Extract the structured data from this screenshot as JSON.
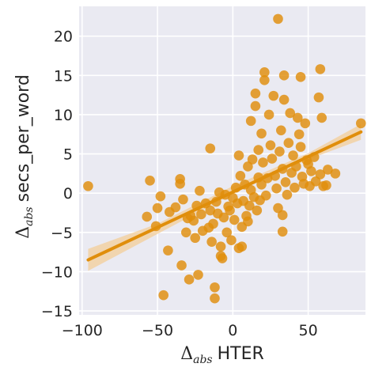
{
  "chart_data": {
    "type": "scatter",
    "title": "",
    "xlabel": {
      "symbol": "Δ",
      "subscript": "abs",
      "text": "HTER"
    },
    "ylabel": {
      "symbol": "Δ",
      "subscript": "abs",
      "text": "secs_per_word"
    },
    "xlim": [
      -102,
      88
    ],
    "ylim": [
      -15.5,
      23.8
    ],
    "xticks": [
      -100,
      -50,
      0,
      50
    ],
    "yticks": [
      -15,
      -10,
      -5,
      0,
      5,
      10,
      15,
      20
    ],
    "grid": true,
    "background": "#EAEAF2",
    "point_color": "#E08E0B",
    "line_color": "#E08E0B",
    "band_color": "#F3CC93",
    "regression": {
      "x0": -96,
      "y0": -8.5,
      "x1": 85,
      "y1": 7.8
    },
    "confidence_band": {
      "x": [
        -96,
        -50,
        0,
        50,
        85
      ],
      "lower": [
        -9.9,
        -5.2,
        -0.1,
        4.3,
        6.8
      ],
      "upper": [
        -7.1,
        -3.9,
        0.9,
        5.1,
        8.8
      ]
    },
    "points": [
      [
        -96,
        0.9
      ],
      [
        -55,
        1.6
      ],
      [
        -57,
        -3.0
      ],
      [
        -50,
        -1.9
      ],
      [
        -51,
        -4.2
      ],
      [
        -48,
        -0.4
      ],
      [
        -46,
        -13.0
      ],
      [
        -43,
        -7.3
      ],
      [
        -42,
        -2.4
      ],
      [
        -38,
        -1.8
      ],
      [
        -35,
        1.8
      ],
      [
        -35,
        1.2
      ],
      [
        -34,
        -9.2
      ],
      [
        -33,
        -0.8
      ],
      [
        -31,
        -5.0
      ],
      [
        -30,
        -3.2
      ],
      [
        -29,
        -11.0
      ],
      [
        -28,
        -2.9
      ],
      [
        -26,
        -3.5
      ],
      [
        -25,
        -5.7
      ],
      [
        -24,
        -1.6
      ],
      [
        -23,
        -10.4
      ],
      [
        -22,
        0.3
      ],
      [
        -21,
        -2.7
      ],
      [
        -20,
        -4.8
      ],
      [
        -18,
        -1.3
      ],
      [
        -16,
        -4.4
      ],
      [
        -15,
        5.7
      ],
      [
        -15,
        -2.2
      ],
      [
        -14,
        -6.2
      ],
      [
        -13,
        -3.9
      ],
      [
        -12,
        -12.0
      ],
      [
        -12,
        -13.4
      ],
      [
        -11,
        -1.1
      ],
      [
        -10,
        -2.6
      ],
      [
        -9,
        0.1
      ],
      [
        -8,
        -6.8
      ],
      [
        -8,
        -8.0
      ],
      [
        -7,
        -8.3
      ],
      [
        -6,
        -3.1
      ],
      [
        -5,
        -0.2
      ],
      [
        -4,
        -5.0
      ],
      [
        -3,
        -1.7
      ],
      [
        -2,
        -2.2
      ],
      [
        -1,
        -6.0
      ],
      [
        0,
        -0.6
      ],
      [
        1,
        -3.4
      ],
      [
        2,
        0.7
      ],
      [
        3,
        -1.3
      ],
      [
        4,
        -7.0
      ],
      [
        4,
        4.8
      ],
      [
        5,
        2.2
      ],
      [
        6,
        -4.3
      ],
      [
        6,
        -6.8
      ],
      [
        7,
        -1.0
      ],
      [
        8,
        1.1
      ],
      [
        9,
        -2.9
      ],
      [
        10,
        -3.6
      ],
      [
        10,
        3.4
      ],
      [
        11,
        -1.6
      ],
      [
        12,
        0.4
      ],
      [
        12,
        9.2
      ],
      [
        13,
        4.3
      ],
      [
        14,
        -0.5
      ],
      [
        15,
        11.1
      ],
      [
        15,
        12.7
      ],
      [
        16,
        -2.2
      ],
      [
        17,
        5.5
      ],
      [
        17,
        2.0
      ],
      [
        18,
        -0.9
      ],
      [
        19,
        1.1
      ],
      [
        19,
        7.6
      ],
      [
        20,
        3.9
      ],
      [
        21,
        14.4
      ],
      [
        21,
        15.4
      ],
      [
        22,
        -0.3
      ],
      [
        23,
        1.9
      ],
      [
        24,
        10.0
      ],
      [
        25,
        6.1
      ],
      [
        26,
        4.4
      ],
      [
        27,
        12.4
      ],
      [
        28,
        2.2
      ],
      [
        29,
        0.6
      ],
      [
        30,
        -1.9
      ],
      [
        30,
        22.2
      ],
      [
        31,
        5.3
      ],
      [
        32,
        8.0
      ],
      [
        33,
        -2.8
      ],
      [
        33,
        -4.9
      ],
      [
        33,
        3.1
      ],
      [
        34,
        11.9
      ],
      [
        34,
        15.0
      ],
      [
        35,
        1.4
      ],
      [
        36,
        -0.2
      ],
      [
        37,
        6.4
      ],
      [
        38,
        10.2
      ],
      [
        39,
        2.6
      ],
      [
        40,
        4.8
      ],
      [
        41,
        0.7
      ],
      [
        42,
        3.4
      ],
      [
        43,
        9.6
      ],
      [
        44,
        7.5
      ],
      [
        45,
        14.8
      ],
      [
        45,
        5.9
      ],
      [
        46,
        2.1
      ],
      [
        47,
        1.2
      ],
      [
        48,
        8.9
      ],
      [
        49,
        4.2
      ],
      [
        50,
        3.7
      ],
      [
        51,
        0.9
      ],
      [
        52,
        2.8
      ],
      [
        54,
        4.6
      ],
      [
        55,
        1.5
      ],
      [
        57,
        12.2
      ],
      [
        58,
        15.8
      ],
      [
        58,
        2.4
      ],
      [
        59,
        9.6
      ],
      [
        60,
        0.9
      ],
      [
        62,
        1.0
      ],
      [
        63,
        3.0
      ],
      [
        68,
        2.5
      ],
      [
        85,
        8.9
      ]
    ]
  }
}
